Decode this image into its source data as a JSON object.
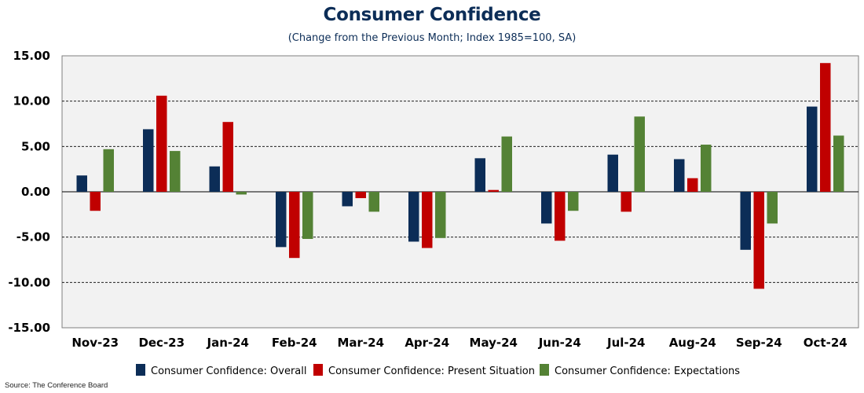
{
  "chart_data": {
    "type": "bar",
    "title": "Consumer Confidence",
    "subtitle": "(Change from the Previous Month; Index 1985=100, SA)",
    "categories": [
      "Nov-23",
      "Dec-23",
      "Jan-24",
      "Feb-24",
      "Mar-24",
      "Apr-24",
      "May-24",
      "Jun-24",
      "Jul-24",
      "Aug-24",
      "Sep-24",
      "Oct-24"
    ],
    "series": [
      {
        "name": "Consumer Confidence: Overall",
        "color": "#0c2d57",
        "values": [
          1.8,
          6.9,
          2.8,
          -6.1,
          -1.6,
          -5.5,
          3.7,
          -3.5,
          4.1,
          3.6,
          -6.4,
          9.4
        ]
      },
      {
        "name": "Consumer Confidence: Present Situation",
        "color": "#c00000",
        "values": [
          -2.1,
          10.6,
          7.7,
          -7.3,
          -0.7,
          -6.2,
          0.2,
          -5.4,
          -2.2,
          1.5,
          -10.7,
          14.2
        ]
      },
      {
        "name": "Consumer Confidence: Expectations",
        "color": "#548235",
        "values": [
          4.7,
          4.5,
          -0.3,
          -5.2,
          -2.2,
          -5.1,
          6.1,
          -2.1,
          8.3,
          5.2,
          -3.5,
          6.2
        ]
      }
    ],
    "yticks": [
      "15.00",
      "10.00",
      "5.00",
      "0.00",
      "-5.00",
      "-10.00",
      "-15.00"
    ],
    "ylim": [
      -15,
      15
    ],
    "grid": true,
    "legend": "bottom"
  },
  "source": "Source: The Conference Board"
}
